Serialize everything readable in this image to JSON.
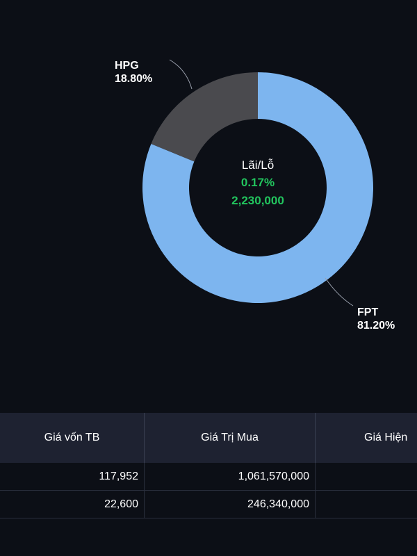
{
  "chart_data": {
    "type": "pie",
    "donut": true,
    "title": "",
    "slices": [
      {
        "name": "FPT",
        "label": "81.20%",
        "value": 81.2,
        "color": "#7db5ef"
      },
      {
        "name": "HPG",
        "label": "18.80%",
        "value": 18.8,
        "color": "#4a4a4e"
      }
    ],
    "center": {
      "title": "Lãi/Lỗ",
      "percent": "0.17%",
      "amount": "2,230,000",
      "color": "#22c55e"
    }
  },
  "table": {
    "columns": [
      "Giá vốn TB",
      "Giá Trị Mua",
      "Giá Hiện"
    ],
    "rows": [
      [
        "117,952",
        "1,061,570,000",
        ""
      ],
      [
        "22,600",
        "246,340,000",
        ""
      ]
    ]
  }
}
